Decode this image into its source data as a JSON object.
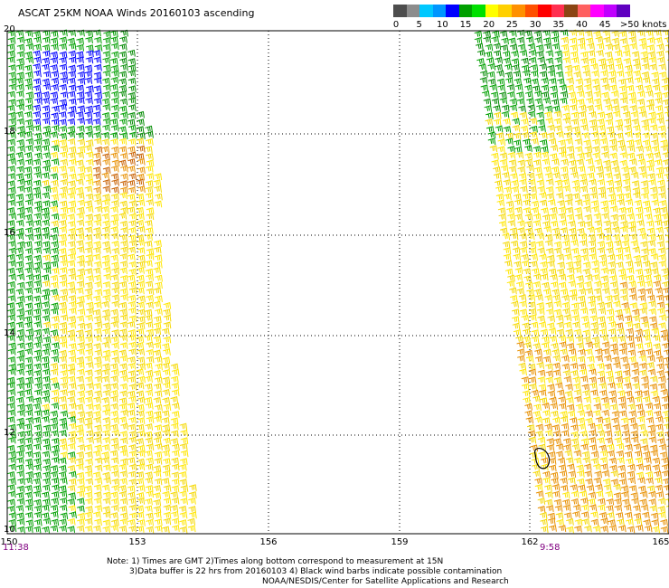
{
  "title": "ASCAT 25KM NOAA Winds 20160103 ascending",
  "legend": {
    "colors": [
      "#4d4d4d",
      "#8c8c8c",
      "#00c8ff",
      "#0096ff",
      "#0000ff",
      "#00a000",
      "#00e000",
      "#ffff00",
      "#ffd000",
      "#ff9000",
      "#ff5000",
      "#ff0000",
      "#ff3050",
      "#8b4513",
      "#ff6060",
      "#ff00ff",
      "#c000ff",
      "#6000c0"
    ],
    "labels": [
      "0",
      "5",
      "10",
      "15",
      "20",
      "25",
      "30",
      "35",
      "40",
      "45",
      ">50 knots"
    ],
    "contamination_color": "#000000"
  },
  "axes": {
    "lat_labels": [
      "20",
      "18",
      "16",
      "14",
      "12",
      "10"
    ],
    "lon_labels": [
      "150",
      "153",
      "156",
      "159",
      "162",
      "165"
    ],
    "lat_range": [
      10,
      20
    ],
    "lon_range": [
      150,
      165
    ],
    "grid": "dotted"
  },
  "pass_times": {
    "west": "11:38",
    "east": "9:58"
  },
  "notes": {
    "line1": "Note: 1) Times are GMT 2)Times along bottom correspond to measurement at 15N",
    "line2": "3)Data buffer is 22 hrs from 20160103 4) Black wind barbs indicate possible contamination",
    "line3": "NOAA/NESDIS/Center for Satellite Applications and Research"
  },
  "swaths": [
    {
      "name": "west-swath",
      "speed_zones": [
        "blue 10-15 kt near 18.5-19.5N",
        "green 15-20 kt",
        "yellow 20-25 kt",
        "orange 25-30 kt near 17.3N, 153E"
      ]
    },
    {
      "name": "east-swath",
      "speed_zones": [
        "green 15-20 kt north",
        "yellow 20-25 kt",
        "orange 25-30 kt south-east"
      ]
    }
  ]
}
